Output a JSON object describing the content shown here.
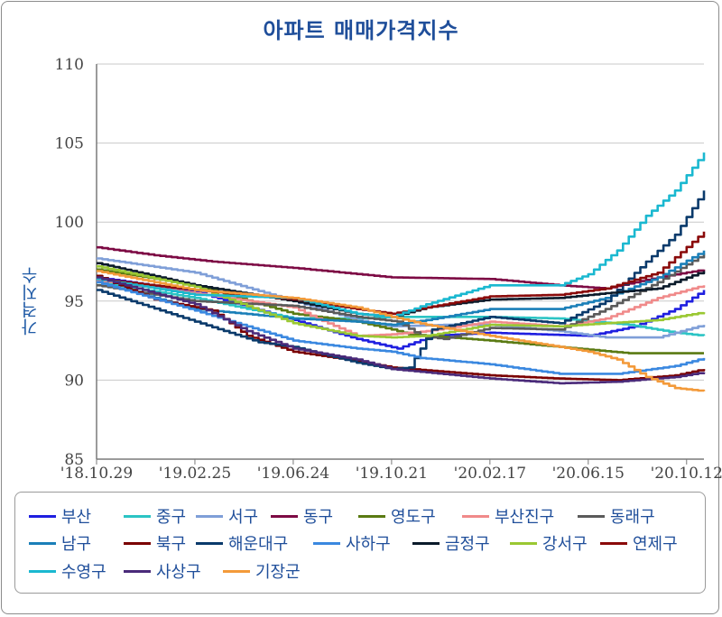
{
  "chart_data": {
    "type": "line",
    "title": "아파트 매매가격지수",
    "ylabel": "가격지수",
    "xlabel": "",
    "ylim": [
      85,
      110
    ],
    "yticks": [
      85,
      90,
      95,
      100,
      105,
      110
    ],
    "x_tick_labels": [
      "'18.10.29",
      "'19.02.25",
      "'19.06.24",
      "'19.10.21",
      "'20.02.17",
      "'20.06.15",
      "'20.10.12"
    ],
    "x_tick_weeks": [
      0,
      17,
      34,
      51,
      68,
      85,
      102
    ],
    "x_start": "2018-10-29",
    "x_end_week": 105,
    "grid": true,
    "legend_position": "bottom",
    "series": [
      {
        "name": "부산",
        "color": "#1f1fe0",
        "anchors": [
          [
            0,
            96.5
          ],
          [
            17,
            95.6
          ],
          [
            34,
            93.8
          ],
          [
            45,
            92.6
          ],
          [
            52,
            92.0
          ],
          [
            58,
            92.8
          ],
          [
            68,
            93.0
          ],
          [
            85,
            92.8
          ],
          [
            93,
            93.4
          ],
          [
            100,
            94.5
          ],
          [
            105,
            95.7
          ]
        ]
      },
      {
        "name": "중구",
        "color": "#2bc4c4",
        "anchors": [
          [
            0,
            96.2
          ],
          [
            17,
            95.2
          ],
          [
            34,
            93.9
          ],
          [
            45,
            93.9
          ],
          [
            51,
            94.0
          ],
          [
            57,
            94.0
          ],
          [
            68,
            94.0
          ],
          [
            80,
            93.9
          ],
          [
            92,
            93.5
          ],
          [
            100,
            93.0
          ],
          [
            105,
            92.8
          ]
        ]
      },
      {
        "name": "서구",
        "color": "#7f9fd8",
        "anchors": [
          [
            0,
            97.7
          ],
          [
            17,
            96.8
          ],
          [
            34,
            95.0
          ],
          [
            45,
            93.8
          ],
          [
            51,
            93.4
          ],
          [
            60,
            93.5
          ],
          [
            68,
            93.5
          ],
          [
            80,
            93.1
          ],
          [
            88,
            92.7
          ],
          [
            97,
            92.7
          ],
          [
            105,
            93.5
          ]
        ]
      },
      {
        "name": "동구",
        "color": "#7d0a44",
        "anchors": [
          [
            0,
            98.4
          ],
          [
            10,
            97.9
          ],
          [
            20,
            97.5
          ],
          [
            34,
            97.1
          ],
          [
            51,
            96.5
          ],
          [
            68,
            96.4
          ],
          [
            80,
            96.0
          ],
          [
            88,
            95.8
          ],
          [
            97,
            96.5
          ],
          [
            105,
            97.0
          ]
        ]
      },
      {
        "name": "영도구",
        "color": "#5a7a12",
        "anchors": [
          [
            0,
            97.0
          ],
          [
            17,
            96.0
          ],
          [
            34,
            94.2
          ],
          [
            45,
            93.7
          ],
          [
            51,
            93.2
          ],
          [
            54,
            92.9
          ],
          [
            68,
            92.5
          ],
          [
            80,
            92.1
          ],
          [
            92,
            91.7
          ],
          [
            105,
            91.7
          ]
        ]
      },
      {
        "name": "부산진구",
        "color": "#f08a8a",
        "anchors": [
          [
            0,
            96.3
          ],
          [
            17,
            95.5
          ],
          [
            34,
            94.6
          ],
          [
            38,
            93.9
          ],
          [
            45,
            92.8
          ],
          [
            51,
            92.9
          ],
          [
            57,
            93.1
          ],
          [
            68,
            93.7
          ],
          [
            80,
            93.4
          ],
          [
            88,
            93.9
          ],
          [
            97,
            95.2
          ],
          [
            105,
            96.0
          ]
        ]
      },
      {
        "name": "동래구",
        "color": "#5a5a5a",
        "anchors": [
          [
            0,
            96.0
          ],
          [
            17,
            95.0
          ],
          [
            34,
            94.7
          ],
          [
            45,
            94.0
          ],
          [
            52,
            93.7
          ],
          [
            56,
            92.8
          ],
          [
            60,
            92.6
          ],
          [
            68,
            93.3
          ],
          [
            80,
            93.2
          ],
          [
            88,
            94.5
          ],
          [
            97,
            96.2
          ],
          [
            105,
            98.0
          ]
        ]
      },
      {
        "name": "남구",
        "color": "#1a7fb8",
        "anchors": [
          [
            0,
            96.2
          ],
          [
            17,
            94.5
          ],
          [
            34,
            93.9
          ],
          [
            45,
            93.7
          ],
          [
            51,
            93.5
          ],
          [
            57,
            93.8
          ],
          [
            68,
            94.5
          ],
          [
            80,
            94.5
          ],
          [
            88,
            95.2
          ],
          [
            97,
            96.5
          ],
          [
            105,
            98.2
          ]
        ]
      },
      {
        "name": "북구",
        "color": "#7a0000",
        "anchors": [
          [
            0,
            96.6
          ],
          [
            10,
            95.1
          ],
          [
            20,
            94.4
          ],
          [
            26,
            92.8
          ],
          [
            34,
            91.8
          ],
          [
            45,
            91.2
          ],
          [
            51,
            90.8
          ],
          [
            68,
            90.3
          ],
          [
            80,
            90.1
          ],
          [
            90,
            90.0
          ],
          [
            100,
            90.3
          ],
          [
            105,
            90.7
          ]
        ]
      },
      {
        "name": "해운대구",
        "color": "#0a3a6b",
        "anchors": [
          [
            0,
            95.7
          ],
          [
            17,
            93.7
          ],
          [
            28,
            92.4
          ],
          [
            34,
            92.1
          ],
          [
            45,
            91.1
          ],
          [
            51,
            90.7
          ],
          [
            54,
            90.8
          ],
          [
            58,
            93.2
          ],
          [
            68,
            94.0
          ],
          [
            80,
            93.6
          ],
          [
            88,
            95.0
          ],
          [
            95,
            97.5
          ],
          [
            100,
            99.2
          ],
          [
            105,
            102.0
          ]
        ]
      },
      {
        "name": "사하구",
        "color": "#3a88e0",
        "anchors": [
          [
            0,
            96.2
          ],
          [
            17,
            94.4
          ],
          [
            34,
            92.5
          ],
          [
            45,
            92.0
          ],
          [
            51,
            91.8
          ],
          [
            56,
            91.4
          ],
          [
            68,
            91.0
          ],
          [
            80,
            90.4
          ],
          [
            90,
            90.4
          ],
          [
            100,
            90.9
          ],
          [
            105,
            91.4
          ]
        ]
      },
      {
        "name": "금정구",
        "color": "#0a1a2a",
        "anchors": [
          [
            0,
            97.4
          ],
          [
            17,
            96.0
          ],
          [
            34,
            95.0
          ],
          [
            45,
            94.2
          ],
          [
            51,
            94.0
          ],
          [
            57,
            94.6
          ],
          [
            68,
            95.1
          ],
          [
            80,
            95.2
          ],
          [
            88,
            95.5
          ],
          [
            97,
            95.8
          ],
          [
            105,
            96.9
          ]
        ]
      },
      {
        "name": "강서구",
        "color": "#9ac832",
        "anchors": [
          [
            0,
            97.2
          ],
          [
            17,
            95.9
          ],
          [
            34,
            93.6
          ],
          [
            45,
            92.8
          ],
          [
            51,
            92.7
          ],
          [
            57,
            92.8
          ],
          [
            68,
            93.5
          ],
          [
            80,
            93.4
          ],
          [
            88,
            93.6
          ],
          [
            97,
            93.8
          ],
          [
            105,
            94.3
          ]
        ]
      },
      {
        "name": "연제구",
        "color": "#8a0a0a",
        "anchors": [
          [
            0,
            96.4
          ],
          [
            17,
            95.7
          ],
          [
            34,
            95.1
          ],
          [
            45,
            94.5
          ],
          [
            51,
            94.2
          ],
          [
            57,
            94.6
          ],
          [
            68,
            95.3
          ],
          [
            80,
            95.4
          ],
          [
            88,
            95.8
          ],
          [
            97,
            96.8
          ],
          [
            105,
            99.4
          ]
        ]
      },
      {
        "name": "수영구",
        "color": "#1ab8d0",
        "anchors": [
          [
            0,
            96.4
          ],
          [
            17,
            95.4
          ],
          [
            34,
            95.2
          ],
          [
            45,
            94.2
          ],
          [
            51,
            94.0
          ],
          [
            57,
            94.8
          ],
          [
            68,
            96.0
          ],
          [
            80,
            96.0
          ],
          [
            85,
            96.7
          ],
          [
            90,
            98.2
          ],
          [
            95,
            100.4
          ],
          [
            100,
            102.0
          ],
          [
            105,
            104.4
          ]
        ]
      },
      {
        "name": "사상구",
        "color": "#4a2a7a",
        "anchors": [
          [
            0,
            96.5
          ],
          [
            17,
            94.8
          ],
          [
            26,
            93.1
          ],
          [
            34,
            92.0
          ],
          [
            45,
            91.3
          ],
          [
            51,
            90.7
          ],
          [
            68,
            90.1
          ],
          [
            80,
            89.8
          ],
          [
            90,
            89.9
          ],
          [
            100,
            90.2
          ],
          [
            105,
            90.5
          ]
        ]
      },
      {
        "name": "기장군",
        "color": "#f39a3a",
        "anchors": [
          [
            0,
            96.9
          ],
          [
            17,
            95.7
          ],
          [
            34,
            95.2
          ],
          [
            45,
            94.6
          ],
          [
            51,
            94.0
          ],
          [
            57,
            93.5
          ],
          [
            68,
            92.8
          ],
          [
            80,
            92.1
          ],
          [
            85,
            91.8
          ],
          [
            90,
            91.3
          ],
          [
            95,
            90.2
          ],
          [
            100,
            89.5
          ],
          [
            105,
            89.3
          ]
        ]
      }
    ]
  }
}
